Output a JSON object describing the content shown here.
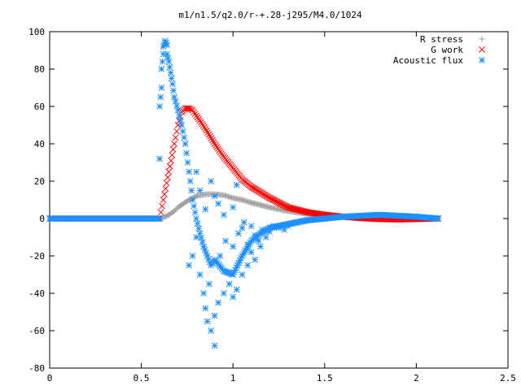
{
  "chart_data": {
    "type": "scatter",
    "title": "m1/n1.5/q2.0/r-+.28-j295/M4.0/1024",
    "xlim": [
      0,
      2.5
    ],
    "ylim": [
      -80,
      100
    ],
    "x_ticks": [
      "0",
      "0.5",
      "1",
      "1.5",
      "2",
      "2.5"
    ],
    "y_ticks": [
      "100",
      "80",
      "60",
      "40",
      "20",
      "0",
      "-20",
      "-40",
      "-60",
      "-80"
    ],
    "x_tick_values": [
      0,
      0.5,
      1,
      1.5,
      2,
      2.5
    ],
    "y_tick_values": [
      100,
      80,
      60,
      40,
      20,
      0,
      -20,
      -40,
      -60,
      -80
    ],
    "grid": false,
    "legend_position": "top-right",
    "series": [
      {
        "name": "R stress",
        "marker": "plus",
        "color": "#a0a0a0",
        "points": [
          [
            0.0,
            0
          ],
          [
            0.6,
            0
          ],
          [
            0.62,
            0.5
          ],
          [
            0.65,
            2
          ],
          [
            0.68,
            4
          ],
          [
            0.7,
            6
          ],
          [
            0.73,
            8
          ],
          [
            0.76,
            10
          ],
          [
            0.8,
            12
          ],
          [
            0.85,
            13
          ],
          [
            0.9,
            13
          ],
          [
            0.95,
            12.5
          ],
          [
            1.0,
            11
          ],
          [
            1.05,
            10
          ],
          [
            1.1,
            8.5
          ],
          [
            1.2,
            6
          ],
          [
            1.3,
            4
          ],
          [
            1.4,
            2.5
          ],
          [
            1.5,
            1.5
          ],
          [
            1.6,
            1
          ],
          [
            1.8,
            0.5
          ],
          [
            2.0,
            0.3
          ],
          [
            2.12,
            0.2
          ]
        ]
      },
      {
        "name": "G work",
        "marker": "cross",
        "color": "#ff0000",
        "points": [
          [
            0.0,
            0
          ],
          [
            0.6,
            0
          ],
          [
            0.62,
            10
          ],
          [
            0.65,
            25
          ],
          [
            0.68,
            40
          ],
          [
            0.7,
            50
          ],
          [
            0.72,
            57
          ],
          [
            0.74,
            59
          ],
          [
            0.76,
            59
          ],
          [
            0.78,
            58
          ],
          [
            0.8,
            55
          ],
          [
            0.85,
            48
          ],
          [
            0.9,
            40
          ],
          [
            0.95,
            33
          ],
          [
            1.0,
            27
          ],
          [
            1.05,
            21
          ],
          [
            1.1,
            17
          ],
          [
            1.2,
            11
          ],
          [
            1.3,
            6
          ],
          [
            1.4,
            3.5
          ],
          [
            1.5,
            2
          ],
          [
            1.6,
            1
          ],
          [
            1.7,
            0.2
          ],
          [
            1.8,
            -0.3
          ],
          [
            1.9,
            -0.5
          ],
          [
            2.0,
            -0.3
          ],
          [
            2.12,
            0
          ]
        ]
      },
      {
        "name": "Acoustic flux",
        "marker": "star",
        "color": "#1e90ff",
        "points": [
          [
            0.0,
            0
          ],
          [
            0.6,
            0
          ],
          [
            0.6,
            32
          ],
          [
            0.6,
            60
          ],
          [
            0.61,
            70
          ],
          [
            0.61,
            80
          ],
          [
            0.62,
            88
          ],
          [
            0.62,
            92
          ],
          [
            0.63,
            94
          ],
          [
            0.63,
            95
          ],
          [
            0.64,
            93
          ],
          [
            0.64,
            88
          ],
          [
            0.65,
            84
          ],
          [
            0.66,
            78
          ],
          [
            0.67,
            72
          ],
          [
            0.68,
            65
          ],
          [
            0.7,
            58
          ],
          [
            0.72,
            50
          ],
          [
            0.74,
            40
          ],
          [
            0.76,
            25
          ],
          [
            0.78,
            10
          ],
          [
            0.8,
            0
          ],
          [
            0.82,
            -8
          ],
          [
            0.84,
            -15
          ],
          [
            0.86,
            -20
          ],
          [
            0.88,
            -25
          ],
          [
            0.9,
            -22
          ],
          [
            0.95,
            -28
          ],
          [
            1.0,
            -30
          ],
          [
            1.05,
            -20
          ],
          [
            1.1,
            -12
          ],
          [
            1.15,
            -8
          ],
          [
            1.2,
            -5
          ],
          [
            1.3,
            -3
          ],
          [
            1.4,
            -1
          ],
          [
            1.5,
            0
          ],
          [
            1.6,
            1
          ],
          [
            1.7,
            1.5
          ],
          [
            1.8,
            2
          ],
          [
            1.9,
            1.5
          ],
          [
            2.0,
            1
          ],
          [
            2.12,
            0
          ],
          [
            0.8,
            25
          ],
          [
            0.8,
            -10
          ],
          [
            0.82,
            -30
          ],
          [
            0.84,
            -40
          ],
          [
            0.85,
            -48
          ],
          [
            0.86,
            -55
          ],
          [
            0.88,
            -60
          ],
          [
            0.9,
            -52
          ],
          [
            0.9,
            -68
          ],
          [
            0.92,
            -45
          ],
          [
            0.95,
            -40
          ],
          [
            0.98,
            -35
          ],
          [
            1.0,
            -42
          ],
          [
            1.02,
            -38
          ],
          [
            1.05,
            -30
          ],
          [
            1.08,
            -25
          ],
          [
            0.88,
            20
          ],
          [
            0.9,
            12
          ],
          [
            0.92,
            8
          ],
          [
            0.95,
            2
          ],
          [
            1.0,
            6
          ],
          [
            1.02,
            18
          ],
          [
            1.05,
            -5
          ],
          [
            1.1,
            -18
          ],
          [
            1.12,
            -22
          ],
          [
            1.15,
            -15
          ],
          [
            1.18,
            -10
          ],
          [
            0.85,
            5
          ],
          [
            0.82,
            15
          ],
          [
            0.78,
            -20
          ],
          [
            0.76,
            -25
          ],
          [
            0.87,
            -35
          ],
          [
            0.93,
            -20
          ],
          [
            0.96,
            -12
          ],
          [
            1.0,
            -15
          ],
          [
            1.03,
            -8
          ],
          [
            1.06,
            -2
          ],
          [
            1.08,
            -14
          ],
          [
            1.1,
            -4
          ],
          [
            1.12,
            -9
          ],
          [
            1.14,
            -12
          ],
          [
            1.16,
            -6
          ],
          [
            1.2,
            -7
          ],
          [
            1.22,
            -4
          ],
          [
            1.25,
            -5
          ],
          [
            1.28,
            -6
          ],
          [
            1.3,
            -4
          ]
        ]
      }
    ]
  }
}
